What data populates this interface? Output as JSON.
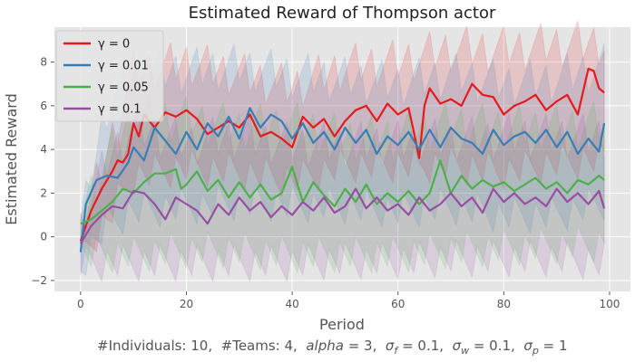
{
  "chart_data": {
    "type": "line",
    "title": "Estimated Reward of Thompson actor",
    "xlabel": "Period",
    "ylabel": "Estimated Reward",
    "xlim": [
      -4.95,
      103.95
    ],
    "ylim": [
      -2.5,
      9.6
    ],
    "xticks": [
      0,
      20,
      40,
      60,
      80,
      100
    ],
    "yticks": [
      -2,
      0,
      2,
      4,
      6,
      8
    ],
    "grid": true,
    "legend_position": "top-left",
    "caption": "#Individuals: 10,  #Teams: 4,  alpha = 3,  σf = 0.1,  σw = 0.1,  σp = 1",
    "caption_parts": {
      "individuals": "#Individuals: 10,  #Teams: 4,  ",
      "alpha_name": "alpha",
      "alpha_value": " = 3,  ",
      "sigma_f_sym": "σ",
      "sigma_f_sub": "f",
      "sigma_f_value": " = 0.1,  ",
      "sigma_w_sym": "σ",
      "sigma_w_sub": "w",
      "sigma_w_value": " = 0.1,  ",
      "sigma_p_sym": "σ",
      "sigma_p_sub": "p",
      "sigma_p_value": " = 1"
    },
    "series": [
      {
        "name": "γ =  0",
        "color": "#e41a1c",
        "keypoints": [
          [
            0,
            -0.2
          ],
          [
            2,
            1.2
          ],
          [
            4,
            2.2
          ],
          [
            6,
            3.0
          ],
          [
            7,
            3.5
          ],
          [
            8,
            3.4
          ],
          [
            9,
            3.8
          ],
          [
            10,
            5.2
          ],
          [
            11,
            4.6
          ],
          [
            12,
            5.6
          ],
          [
            14,
            5.0
          ],
          [
            16,
            5.7
          ],
          [
            18,
            5.5
          ],
          [
            20,
            5.8
          ],
          [
            22,
            5.4
          ],
          [
            24,
            4.7
          ],
          [
            26,
            5.0
          ],
          [
            28,
            5.3
          ],
          [
            30,
            5.0
          ],
          [
            32,
            5.6
          ],
          [
            34,
            4.6
          ],
          [
            36,
            4.8
          ],
          [
            38,
            4.5
          ],
          [
            40,
            4.1
          ],
          [
            42,
            5.5
          ],
          [
            44,
            5.0
          ],
          [
            46,
            5.4
          ],
          [
            48,
            4.6
          ],
          [
            50,
            5.3
          ],
          [
            52,
            5.8
          ],
          [
            54,
            6.0
          ],
          [
            56,
            5.3
          ],
          [
            58,
            6.1
          ],
          [
            60,
            5.6
          ],
          [
            62,
            5.9
          ],
          [
            63,
            4.8
          ],
          [
            64,
            3.6
          ],
          [
            65,
            6.0
          ],
          [
            66,
            6.8
          ],
          [
            68,
            6.1
          ],
          [
            70,
            6.3
          ],
          [
            72,
            6.0
          ],
          [
            74,
            7.0
          ],
          [
            76,
            6.5
          ],
          [
            78,
            6.4
          ],
          [
            80,
            5.6
          ],
          [
            82,
            6.0
          ],
          [
            84,
            6.2
          ],
          [
            86,
            6.5
          ],
          [
            88,
            5.8
          ],
          [
            90,
            6.2
          ],
          [
            92,
            6.5
          ],
          [
            94,
            5.6
          ],
          [
            96,
            7.7
          ],
          [
            97,
            7.6
          ],
          [
            98,
            6.8
          ],
          [
            99,
            6.6
          ]
        ],
        "band_keypoints": [
          [
            0,
            -0.8,
            0.2
          ],
          [
            5,
            0.8,
            3.8
          ],
          [
            10,
            2.8,
            7.5
          ],
          [
            20,
            3.2,
            8.0
          ],
          [
            30,
            3.0,
            7.4
          ],
          [
            40,
            2.6,
            6.8
          ],
          [
            50,
            3.3,
            7.8
          ],
          [
            60,
            3.3,
            8.0
          ],
          [
            70,
            3.3,
            8.6
          ],
          [
            80,
            3.0,
            8.6
          ],
          [
            90,
            3.4,
            8.8
          ],
          [
            99,
            3.6,
            8.9
          ]
        ]
      },
      {
        "name": "γ =  0.01",
        "color": "#377eb8",
        "keypoints": [
          [
            0,
            -0.7
          ],
          [
            1,
            1.5
          ],
          [
            3,
            2.6
          ],
          [
            5,
            2.8
          ],
          [
            7,
            2.7
          ],
          [
            9,
            3.4
          ],
          [
            10,
            4.1
          ],
          [
            12,
            3.5
          ],
          [
            14,
            5.0
          ],
          [
            16,
            4.4
          ],
          [
            18,
            3.8
          ],
          [
            20,
            4.8
          ],
          [
            22,
            4.0
          ],
          [
            24,
            5.2
          ],
          [
            26,
            4.6
          ],
          [
            28,
            5.5
          ],
          [
            30,
            4.5
          ],
          [
            32,
            5.9
          ],
          [
            34,
            5.0
          ],
          [
            36,
            5.6
          ],
          [
            38,
            5.3
          ],
          [
            40,
            4.5
          ],
          [
            42,
            5.2
          ],
          [
            44,
            4.3
          ],
          [
            46,
            4.8
          ],
          [
            48,
            4.0
          ],
          [
            50,
            5.0
          ],
          [
            52,
            4.3
          ],
          [
            54,
            4.9
          ],
          [
            56,
            3.8
          ],
          [
            58,
            4.6
          ],
          [
            60,
            4.2
          ],
          [
            62,
            4.8
          ],
          [
            64,
            4.0
          ],
          [
            66,
            4.9
          ],
          [
            68,
            4.1
          ],
          [
            70,
            5.0
          ],
          [
            72,
            4.5
          ],
          [
            74,
            4.3
          ],
          [
            76,
            3.8
          ],
          [
            78,
            4.9
          ],
          [
            80,
            4.2
          ],
          [
            82,
            4.6
          ],
          [
            84,
            4.8
          ],
          [
            86,
            4.3
          ],
          [
            88,
            4.9
          ],
          [
            90,
            4.1
          ],
          [
            92,
            4.8
          ],
          [
            94,
            3.8
          ],
          [
            96,
            4.5
          ],
          [
            98,
            3.9
          ],
          [
            99,
            5.2
          ]
        ],
        "band_keypoints": [
          [
            0,
            -1.3,
            0.4
          ],
          [
            5,
            0.6,
            6.0
          ],
          [
            10,
            1.2,
            7.5
          ],
          [
            20,
            1.4,
            7.6
          ],
          [
            30,
            1.6,
            7.8
          ],
          [
            40,
            1.5,
            7.4
          ],
          [
            50,
            1.4,
            7.2
          ],
          [
            60,
            1.2,
            7.0
          ],
          [
            70,
            1.4,
            7.4
          ],
          [
            80,
            1.0,
            7.0
          ],
          [
            90,
            1.0,
            7.2
          ],
          [
            99,
            1.6,
            7.8
          ]
        ]
      },
      {
        "name": "γ =  0.05",
        "color": "#4daf4a",
        "keypoints": [
          [
            0,
            0.6
          ],
          [
            2,
            0.8
          ],
          [
            4,
            1.2
          ],
          [
            6,
            1.6
          ],
          [
            8,
            2.2
          ],
          [
            10,
            2.0
          ],
          [
            12,
            2.5
          ],
          [
            14,
            2.9
          ],
          [
            16,
            2.9
          ],
          [
            18,
            3.1
          ],
          [
            19,
            2.2
          ],
          [
            20,
            2.4
          ],
          [
            22,
            3.0
          ],
          [
            24,
            2.1
          ],
          [
            26,
            2.6
          ],
          [
            28,
            1.8
          ],
          [
            30,
            2.5
          ],
          [
            32,
            1.8
          ],
          [
            34,
            2.4
          ],
          [
            36,
            1.7
          ],
          [
            38,
            2.0
          ],
          [
            40,
            3.2
          ],
          [
            42,
            1.6
          ],
          [
            44,
            2.5
          ],
          [
            46,
            1.9
          ],
          [
            48,
            1.4
          ],
          [
            50,
            2.2
          ],
          [
            52,
            1.6
          ],
          [
            54,
            2.4
          ],
          [
            56,
            1.5
          ],
          [
            58,
            2.0
          ],
          [
            60,
            1.6
          ],
          [
            62,
            2.1
          ],
          [
            64,
            1.5
          ],
          [
            66,
            2.0
          ],
          [
            68,
            3.5
          ],
          [
            70,
            2.0
          ],
          [
            72,
            2.8
          ],
          [
            74,
            2.2
          ],
          [
            76,
            2.6
          ],
          [
            78,
            2.3
          ],
          [
            80,
            2.5
          ],
          [
            82,
            2.1
          ],
          [
            84,
            2.4
          ],
          [
            86,
            2.7
          ],
          [
            88,
            2.2
          ],
          [
            90,
            2.5
          ],
          [
            92,
            2.0
          ],
          [
            94,
            2.6
          ],
          [
            96,
            2.4
          ],
          [
            98,
            2.8
          ],
          [
            99,
            2.6
          ]
        ],
        "band_keypoints": [
          [
            0,
            -0.8,
            1.2
          ],
          [
            5,
            -0.8,
            3.5
          ],
          [
            10,
            -0.8,
            5.5
          ],
          [
            20,
            -0.6,
            5.4
          ],
          [
            30,
            -0.6,
            5.0
          ],
          [
            40,
            -0.8,
            5.2
          ],
          [
            50,
            -0.8,
            4.5
          ],
          [
            60,
            -0.8,
            4.6
          ],
          [
            70,
            -0.6,
            5.2
          ],
          [
            80,
            -0.5,
            5.0
          ],
          [
            90,
            -0.4,
            5.0
          ],
          [
            99,
            -0.3,
            5.2
          ]
        ]
      },
      {
        "name": "γ =  0.1",
        "color": "#984ea3",
        "keypoints": [
          [
            0,
            -0.3
          ],
          [
            2,
            0.5
          ],
          [
            4,
            1.0
          ],
          [
            6,
            1.4
          ],
          [
            8,
            1.3
          ],
          [
            10,
            2.1
          ],
          [
            12,
            2.0
          ],
          [
            14,
            1.5
          ],
          [
            16,
            0.8
          ],
          [
            18,
            1.8
          ],
          [
            20,
            1.5
          ],
          [
            22,
            1.2
          ],
          [
            24,
            0.6
          ],
          [
            26,
            1.5
          ],
          [
            28,
            1.0
          ],
          [
            30,
            1.8
          ],
          [
            32,
            1.2
          ],
          [
            34,
            1.6
          ],
          [
            36,
            0.9
          ],
          [
            38,
            1.4
          ],
          [
            40,
            1.0
          ],
          [
            42,
            1.6
          ],
          [
            44,
            1.2
          ],
          [
            46,
            1.8
          ],
          [
            48,
            1.1
          ],
          [
            50,
            1.4
          ],
          [
            52,
            2.2
          ],
          [
            54,
            1.3
          ],
          [
            56,
            1.8
          ],
          [
            58,
            1.2
          ],
          [
            60,
            1.5
          ],
          [
            62,
            1.0
          ],
          [
            64,
            1.8
          ],
          [
            66,
            1.2
          ],
          [
            68,
            1.5
          ],
          [
            70,
            2.0
          ],
          [
            72,
            1.4
          ],
          [
            74,
            1.8
          ],
          [
            76,
            1.1
          ],
          [
            78,
            2.2
          ],
          [
            80,
            1.6
          ],
          [
            82,
            2.0
          ],
          [
            84,
            1.5
          ],
          [
            86,
            1.8
          ],
          [
            88,
            1.4
          ],
          [
            90,
            2.2
          ],
          [
            92,
            1.6
          ],
          [
            94,
            2.0
          ],
          [
            96,
            1.5
          ],
          [
            98,
            2.1
          ],
          [
            99,
            1.3
          ]
        ],
        "band_keypoints": [
          [
            0,
            -1.2,
            0.4
          ],
          [
            5,
            -1.2,
            3.5
          ],
          [
            10,
            -1.2,
            5.0
          ],
          [
            20,
            -1.2,
            4.3
          ],
          [
            30,
            -1.2,
            4.6
          ],
          [
            40,
            -1.2,
            4.2
          ],
          [
            50,
            -1.1,
            4.2
          ],
          [
            60,
            -1.1,
            4.3
          ],
          [
            70,
            -1.0,
            4.4
          ],
          [
            80,
            -1.0,
            4.6
          ],
          [
            90,
            -1.0,
            4.6
          ],
          [
            99,
            -1.2,
            4.6
          ]
        ]
      }
    ]
  }
}
